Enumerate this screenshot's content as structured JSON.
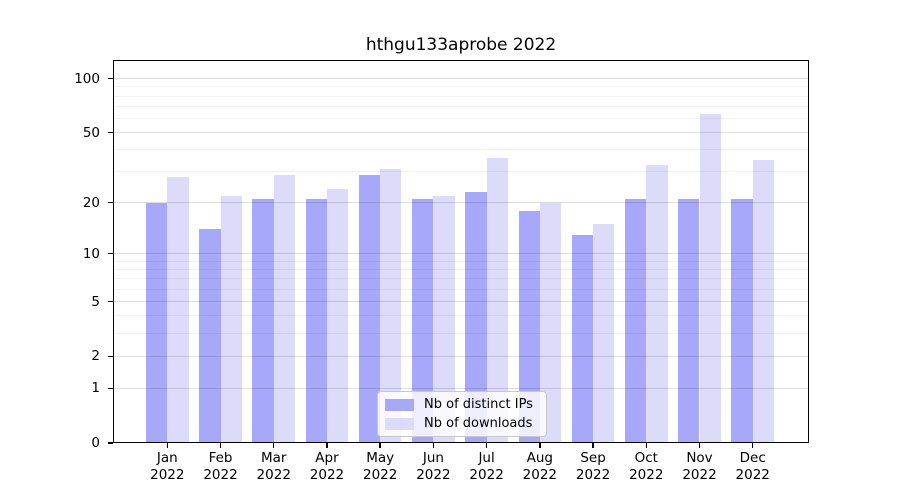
{
  "chart_data": {
    "type": "bar",
    "title": "hthgu133aprobe 2022",
    "categories": [
      "Jan",
      "Feb",
      "Mar",
      "Apr",
      "May",
      "Jun",
      "Jul",
      "Aug",
      "Sep",
      "Oct",
      "Nov",
      "Dec"
    ],
    "year_label": "2022",
    "series": [
      {
        "name": "Nb of distinct IPs",
        "color": "#a8a8fa",
        "values": [
          20,
          14,
          21,
          21,
          29,
          21,
          23,
          18,
          13,
          21,
          21,
          21
        ]
      },
      {
        "name": "Nb of downloads",
        "color": "#dcdcfa",
        "values": [
          28,
          22,
          29,
          24,
          31,
          22,
          36,
          20,
          15,
          33,
          64,
          35
        ]
      }
    ],
    "xlabel": "",
    "ylabel": "",
    "yscale": "log1p",
    "ylim": [
      0,
      127
    ],
    "y_major_ticks": [
      100,
      50,
      20,
      10,
      5,
      2,
      1,
      0
    ],
    "y_minor_gridlines": [
      3,
      4,
      6,
      7,
      8,
      9,
      30,
      40,
      60,
      70,
      80,
      90
    ],
    "grid": true,
    "legend_position": "bottom-center"
  }
}
